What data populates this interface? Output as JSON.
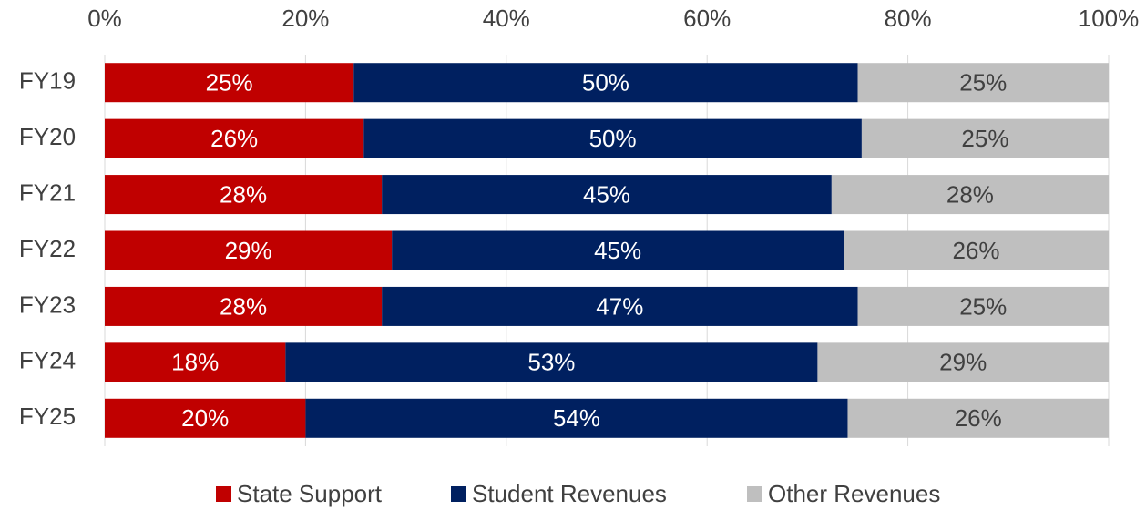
{
  "chart_data": {
    "type": "bar",
    "orientation": "horizontal",
    "stacked": true,
    "categories": [
      "FY19",
      "FY20",
      "FY21",
      "FY22",
      "FY23",
      "FY24",
      "FY25"
    ],
    "series": [
      {
        "name": "State Support",
        "color": "#c00000",
        "values": [
          24.8,
          25.8,
          27.6,
          28.6,
          27.6,
          18.0,
          20.0
        ],
        "value_labels": [
          "25%",
          "26%",
          "28%",
          "29%",
          "28%",
          "18%",
          "20%"
        ]
      },
      {
        "name": "Student Revenues",
        "color": "#002060",
        "values": [
          50.2,
          49.6,
          44.8,
          45.0,
          47.4,
          53.0,
          54.0
        ],
        "value_labels": [
          "50%",
          "50%",
          "45%",
          "45%",
          "47%",
          "53%",
          "54%"
        ]
      },
      {
        "name": "Other Revenues",
        "color": "#bfbfbf",
        "values": [
          25.0,
          24.6,
          27.6,
          26.4,
          25.0,
          29.0,
          26.0
        ],
        "value_labels": [
          "25%",
          "25%",
          "28%",
          "26%",
          "25%",
          "29%",
          "26%"
        ]
      }
    ],
    "xlim": [
      0,
      100
    ],
    "xticks": [
      {
        "value": 0,
        "label": "0%"
      },
      {
        "value": 20,
        "label": "20%"
      },
      {
        "value": 40,
        "label": "40%"
      },
      {
        "value": 60,
        "label": "60%"
      },
      {
        "value": 80,
        "label": "80%"
      },
      {
        "value": 100,
        "label": "100%"
      }
    ],
    "grid": true,
    "legend": "bottom"
  }
}
